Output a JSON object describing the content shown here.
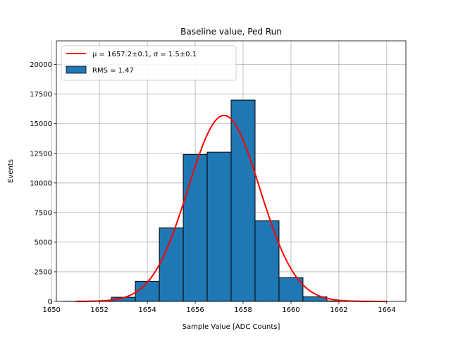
{
  "chart_data": {
    "type": "bar",
    "title": "Baseline value, Ped Run",
    "xlabel": "Sample Value [ADC Counts]",
    "ylabel": "Events",
    "xlim": [
      1650.2,
      1664.8
    ],
    "ylim": [
      0,
      22000
    ],
    "xticks": [
      1650,
      1652,
      1654,
      1656,
      1658,
      1660,
      1662,
      1664
    ],
    "yticks": [
      0,
      2500,
      5000,
      7500,
      10000,
      12500,
      15000,
      17500,
      20000
    ],
    "grid": true,
    "legend_position": "top-left",
    "histogram": {
      "name": "RMS = 1.47",
      "color": "#1f77b4",
      "edgecolor": "#000000",
      "bin_edges": [
        1650.5,
        1651.5,
        1652.5,
        1653.5,
        1654.5,
        1655.5,
        1656.5,
        1657.5,
        1658.5,
        1659.5,
        1660.5,
        1661.5,
        1662.5,
        1663.5
      ],
      "counts": [
        5,
        30,
        350,
        1700,
        6200,
        12400,
        12600,
        17000,
        6800,
        2000,
        380,
        40,
        5
      ]
    },
    "fit": {
      "name_math": "μ = 1657.2±0.1, σ = 1.5±0.1",
      "function": "gaussian",
      "mu": 1657.2,
      "sigma": 1.5,
      "amplitude": 15700,
      "x_range": [
        1651,
        1664
      ],
      "color": "#ff0000"
    }
  }
}
